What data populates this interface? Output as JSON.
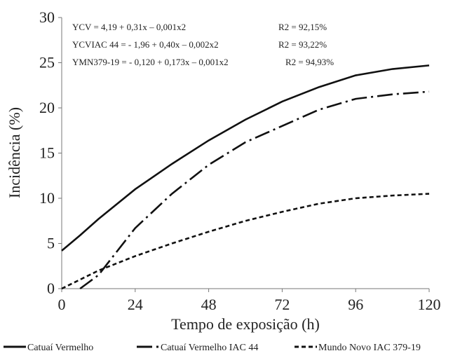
{
  "chart_data": {
    "type": "line",
    "xlabel": "Tempo de exposição (h)",
    "ylabel": "Incidência (%)",
    "x": [
      0,
      6,
      12,
      24,
      36,
      48,
      60,
      72,
      84,
      96,
      108,
      120
    ],
    "xlim": [
      0,
      120
    ],
    "xticks": [
      0,
      24,
      48,
      72,
      96,
      120
    ],
    "ylim": [
      0,
      30
    ],
    "yticks": [
      0,
      5,
      10,
      15,
      20,
      25,
      30
    ],
    "grid": false,
    "series": [
      {
        "name": "Catuaí Vermelho",
        "color": "#111111",
        "style": "solid",
        "values": [
          4.2,
          5.9,
          7.7,
          11.0,
          13.8,
          16.4,
          18.7,
          20.7,
          22.3,
          23.6,
          24.3,
          24.7
        ]
      },
      {
        "name": "Catuaí Vermelho IAC 44",
        "color": "#111111",
        "style": "dashdot",
        "values": [
          null,
          0,
          1.5,
          6.7,
          10.5,
          13.7,
          16.2,
          18.0,
          19.8,
          21.0,
          21.5,
          21.8
        ]
      },
      {
        "name": "Mundo Novo IAC 379-19",
        "color": "#111111",
        "style": "dashed",
        "values": [
          0,
          1.0,
          2.0,
          3.6,
          5.0,
          6.3,
          7.5,
          8.5,
          9.4,
          10.0,
          10.3,
          10.5
        ]
      }
    ],
    "annotations": [
      {
        "equation": "YCV = 4,19 + 0,31x – 0,001x2",
        "r2": "R2 = 92,15%"
      },
      {
        "equation": "YCVIAC 44 = - 1,96 + 0,40x – 0,002x2",
        "r2": "R2 = 93,22%"
      },
      {
        "equation": "YMN379-19 = - 0,120 + 0,173x – 0,001x2",
        "r2": "R2 = 94,93%"
      }
    ],
    "legend": "bottom"
  }
}
